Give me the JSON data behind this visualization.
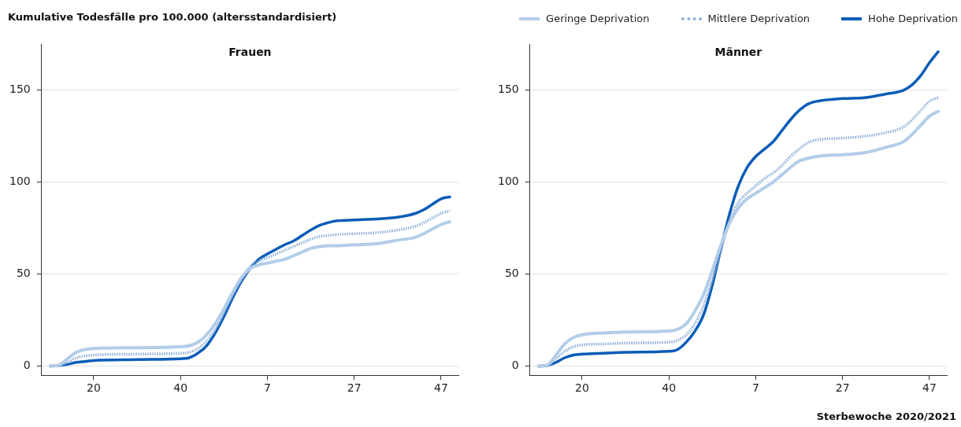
{
  "chart_data": [
    {
      "type": "line",
      "title": "Frauen",
      "ylabel": "Kumulative Todesfälle pro 100.000 (altersstandardisiert)",
      "legend": "top right",
      "grid": "y",
      "marker": "none",
      "xlim": [
        "2020-02-17",
        "2021-12-20"
      ],
      "ylim": [
        -5,
        175
      ],
      "yticks": [
        0,
        50,
        100,
        150
      ],
      "xticks": [
        {
          "value": "2020-05-11",
          "label": "20"
        },
        {
          "value": "2020-09-28",
          "label": "40"
        },
        {
          "value": "2021-02-15",
          "label": "7"
        },
        {
          "value": "2021-07-05",
          "label": "27"
        },
        {
          "value": "2021-11-22",
          "label": "47"
        }
      ],
      "x": [
        "2020-03-02",
        "2020-03-16",
        "2020-03-30",
        "2020-04-13",
        "2020-04-27",
        "2020-05-11",
        "2020-07-20",
        "2020-09-28",
        "2020-10-12",
        "2020-10-26",
        "2020-11-09",
        "2020-11-23",
        "2020-12-07",
        "2020-12-21",
        "2021-01-04",
        "2021-01-18",
        "2021-02-01",
        "2021-02-15",
        "2021-03-01",
        "2021-03-15",
        "2021-03-29",
        "2021-04-12",
        "2021-04-26",
        "2021-05-10",
        "2021-05-24",
        "2021-06-07",
        "2021-07-05",
        "2021-08-09",
        "2021-09-13",
        "2021-10-11",
        "2021-10-25",
        "2021-11-08",
        "2021-11-22",
        "2021-12-06"
      ],
      "series": [
        {
          "name": "Geringe Deprivation",
          "color": "#b3cde9",
          "line_style": "solid",
          "values": [
            0,
            0.5,
            4,
            7.5,
            9,
            9.5,
            10,
            10.5,
            11,
            13,
            17,
            23,
            31,
            40,
            48,
            53,
            55,
            56,
            57,
            58,
            60,
            62,
            64,
            65,
            65.5,
            65.5,
            66,
            66.5,
            68.5,
            70,
            72,
            74.5,
            77,
            78.5
          ]
        },
        {
          "name": "Mittlere Deprivation",
          "color": "#8fb0d8",
          "line_style": "dotted",
          "values": [
            0,
            0.3,
            2,
            4.5,
            5.5,
            6,
            6.5,
            7,
            7.5,
            9.5,
            13.5,
            20,
            29,
            38.5,
            47,
            54,
            57,
            59,
            61,
            63,
            65,
            67,
            69,
            70.5,
            71,
            71.5,
            72,
            72.5,
            74,
            76,
            78,
            80.5,
            83,
            84.5
          ]
        },
        {
          "name": "Hohe Deprivation",
          "color": "#0a5cb8",
          "line_style": "solid",
          "values": [
            0,
            0.3,
            1,
            2,
            2.5,
            3,
            3.5,
            4,
            4.5,
            7,
            11,
            18,
            27,
            37,
            46,
            53,
            58,
            61,
            63.5,
            66,
            68,
            71,
            74,
            76.5,
            78,
            79,
            79.5,
            80,
            81,
            83,
            85,
            88,
            91,
            92
          ]
        }
      ]
    },
    {
      "type": "line",
      "title": "Männer",
      "xlabel": "Sterbewoche 2020/2021",
      "grid": "y",
      "marker": "none",
      "xlim": [
        "2020-02-17",
        "2021-12-20"
      ],
      "ylim": [
        -5,
        175
      ],
      "yticks": [
        0,
        50,
        100,
        150
      ],
      "xticks": [
        {
          "value": "2020-05-11",
          "label": "20"
        },
        {
          "value": "2020-09-28",
          "label": "40"
        },
        {
          "value": "2021-02-15",
          "label": "7"
        },
        {
          "value": "2021-07-05",
          "label": "27"
        },
        {
          "value": "2021-11-22",
          "label": "47"
        }
      ],
      "x": [
        "2020-03-02",
        "2020-03-16",
        "2020-03-30",
        "2020-04-13",
        "2020-04-27",
        "2020-05-11",
        "2020-06-15",
        "2020-07-20",
        "2020-09-28",
        "2020-10-12",
        "2020-10-26",
        "2020-11-09",
        "2020-11-23",
        "2020-12-07",
        "2020-12-21",
        "2021-01-04",
        "2021-01-18",
        "2021-02-01",
        "2021-02-15",
        "2021-03-01",
        "2021-03-15",
        "2021-03-29",
        "2021-04-12",
        "2021-04-26",
        "2021-05-10",
        "2021-05-24",
        "2021-07-05",
        "2021-08-09",
        "2021-09-13",
        "2021-10-11",
        "2021-10-25",
        "2021-11-08",
        "2021-11-22",
        "2021-12-06"
      ],
      "series": [
        {
          "color": "#b3cde9",
          "line_style": "solid",
          "values": [
            0,
            0.5,
            6,
            12,
            15.5,
            17,
            18,
            18.5,
            19,
            20,
            23,
            30,
            39,
            52,
            66,
            78,
            86,
            91,
            94,
            97,
            100,
            104,
            108,
            111.5,
            113,
            114,
            115,
            116,
            119,
            122,
            126,
            131,
            136,
            138.5
          ]
        },
        {
          "color": "#8fb0d8",
          "line_style": "dotted",
          "values": [
            0,
            0.3,
            4,
            8,
            10.5,
            11.5,
            12,
            12.5,
            13,
            14,
            17,
            23,
            33,
            47,
            63,
            79,
            89,
            94,
            98,
            102,
            105,
            109,
            114,
            118,
            121.5,
            123,
            124,
            125,
            127,
            130,
            134,
            139,
            144,
            146
          ]
        },
        {
          "color": "#0a5cb8",
          "line_style": "solid",
          "values": [
            0,
            0.3,
            2,
            4.5,
            6,
            6.5,
            7,
            7.5,
            8,
            9,
            13,
            19,
            28,
            44,
            64,
            83,
            98,
            108,
            114,
            118,
            122,
            128,
            134,
            139,
            142.5,
            144,
            145.5,
            146,
            148,
            150,
            153,
            158,
            165,
            171
          ]
        }
      ]
    }
  ]
}
